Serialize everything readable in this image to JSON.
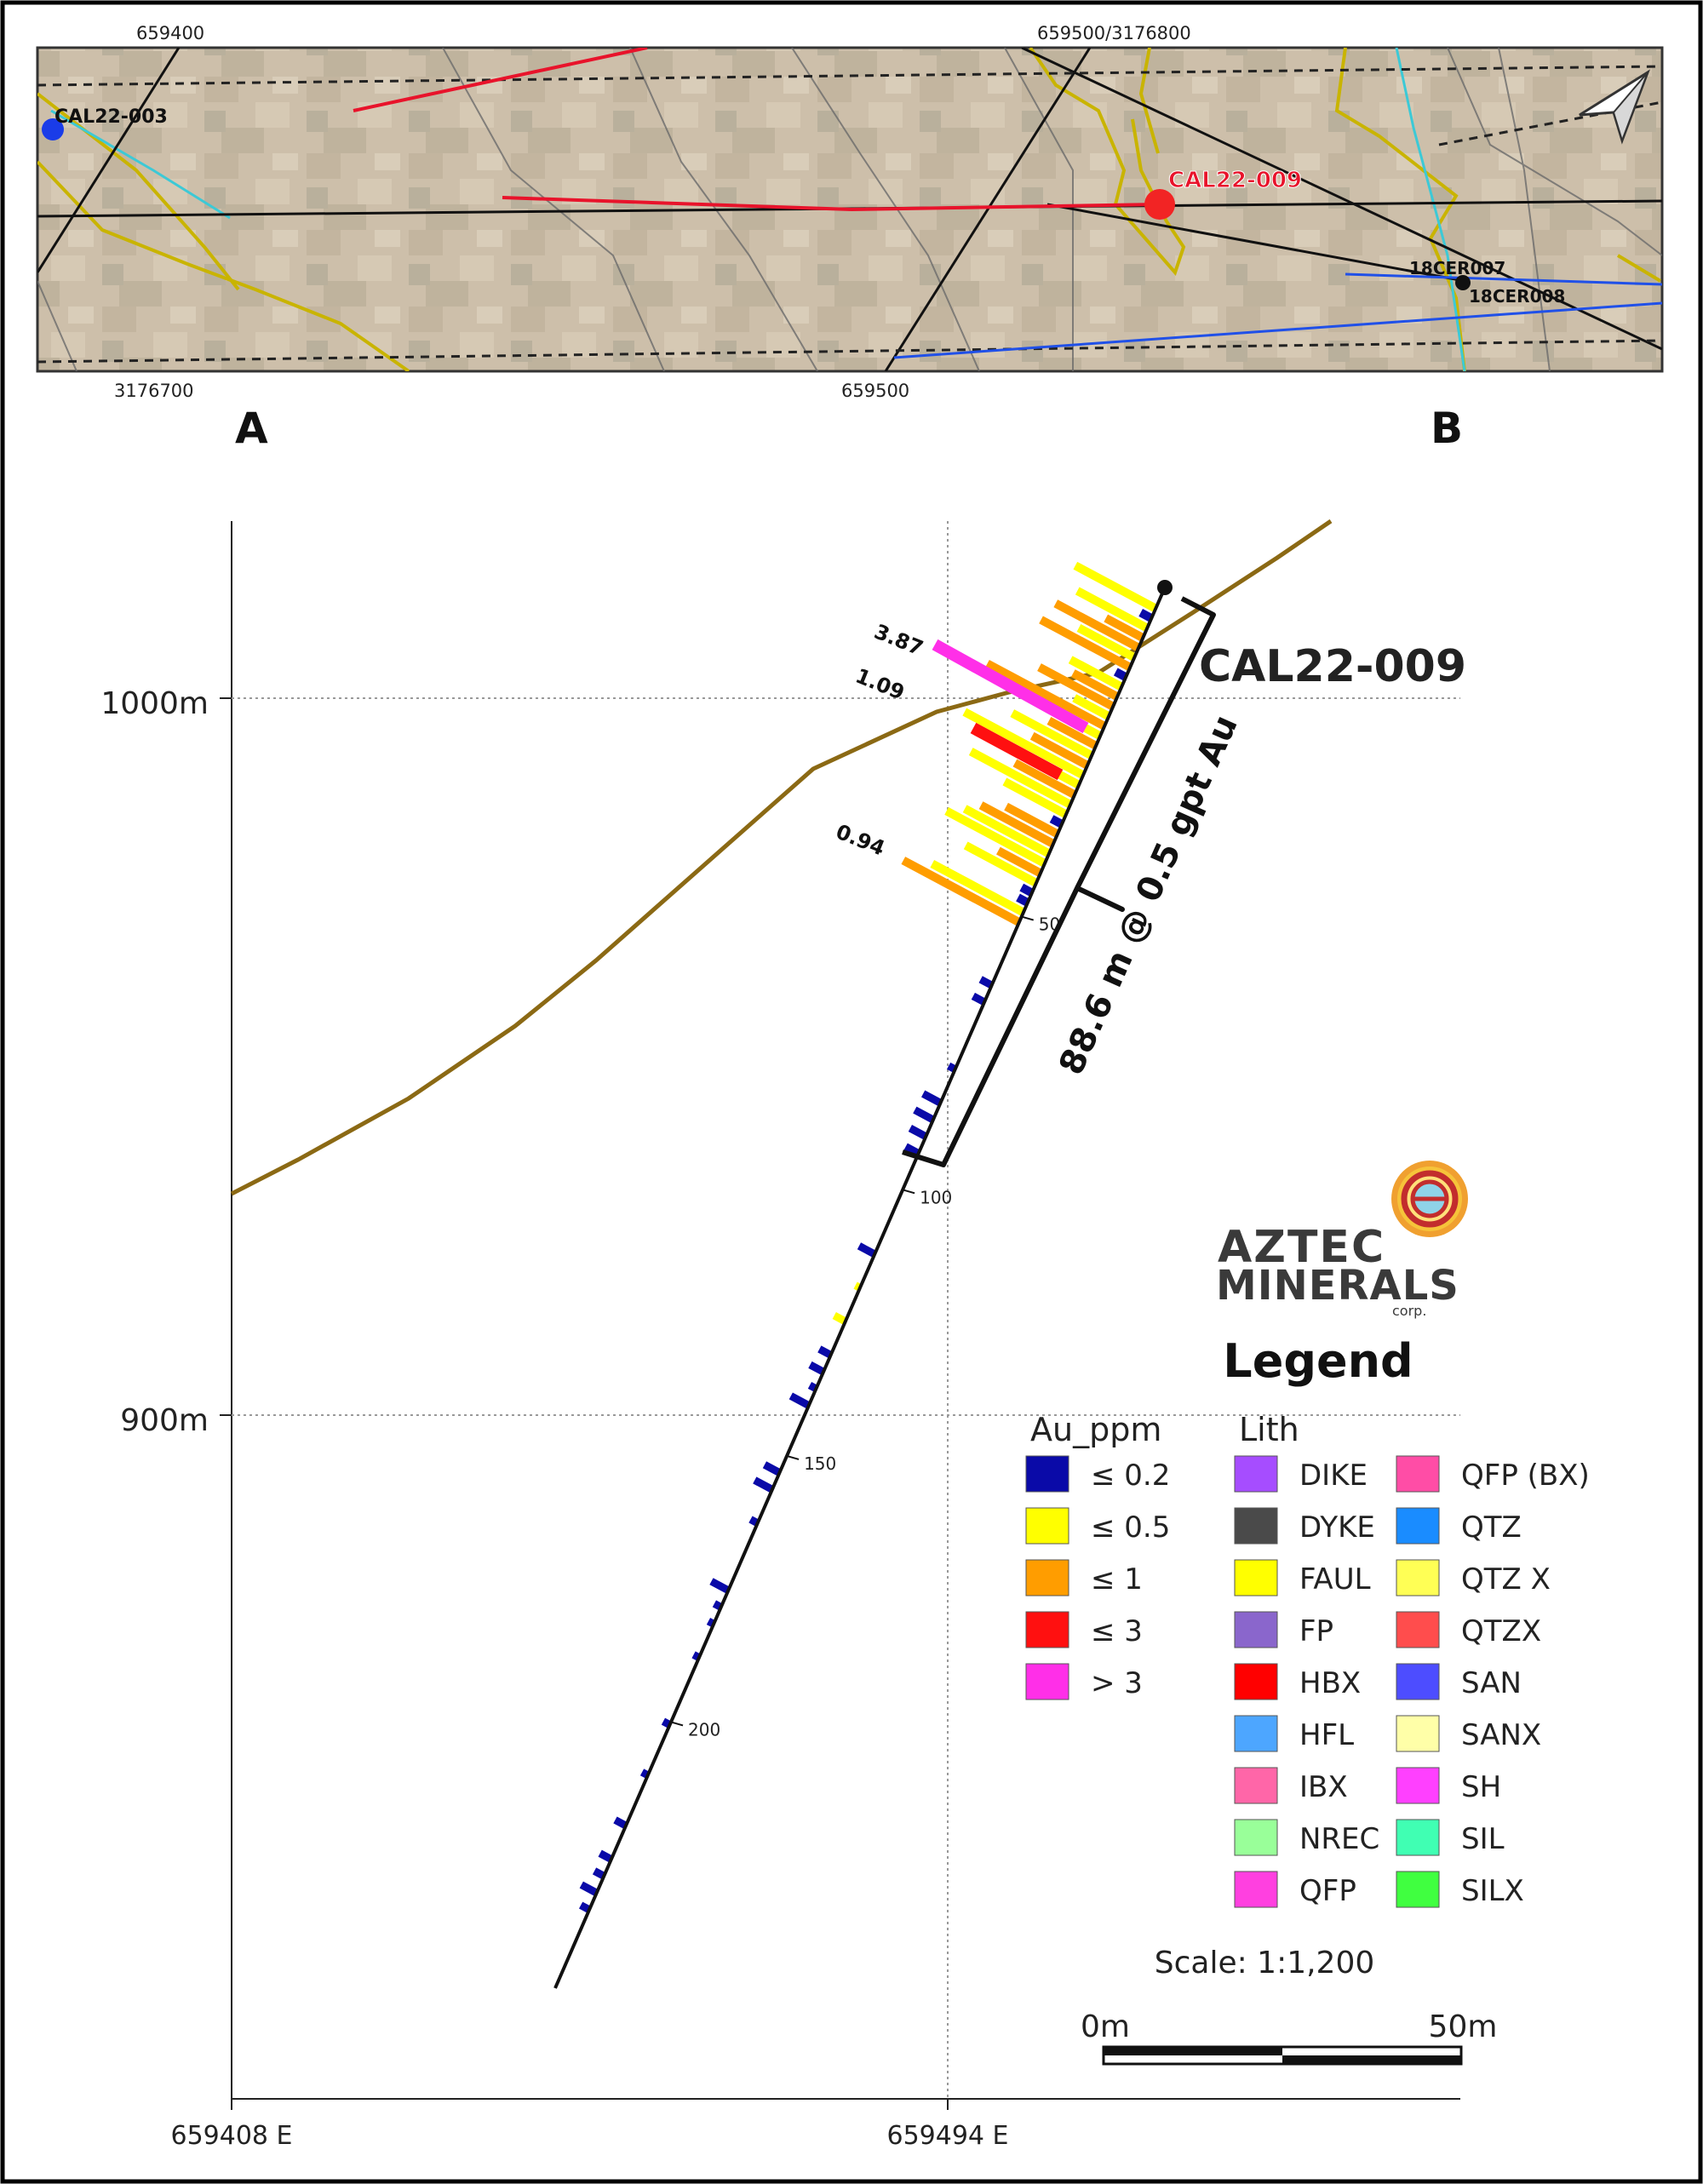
{
  "plan_map": {
    "grid_labels": {
      "top_left": "659400",
      "top_mid": "659500/3176800",
      "bottom_left": "3176700",
      "bottom_mid": "659500"
    },
    "holes": {
      "cal22_003": "CAL22-003",
      "cal22_009": "CAL22-009",
      "cer007": "18CER007",
      "cer008": "18CER008"
    }
  },
  "section_endpoints": {
    "a": "A",
    "b": "B"
  },
  "section": {
    "elevations": {
      "e1000": "1000m",
      "e900": "900m"
    },
    "eastings": {
      "e1": "659408 E",
      "e2": "659494 E"
    },
    "hole_id": "CAL22-009",
    "intercept": "88.6 m @ 0.5 gpt Au",
    "depth_ticks": [
      "50",
      "100",
      "150",
      "200"
    ],
    "assay_labels": [
      "3.87",
      "1.09",
      "0.94"
    ]
  },
  "logo": {
    "line1": "AZTEC",
    "line2": "MINERALS",
    "line3": "corp."
  },
  "legend": {
    "title": "Legend",
    "au_title": "Au_ppm",
    "au": [
      {
        "label": "≤ 0.2",
        "color": "#0a0aa8"
      },
      {
        "label": "≤ 0.5",
        "color": "#ffff00"
      },
      {
        "label": "≤ 1",
        "color": "#ff9d00"
      },
      {
        "label": "≤ 3",
        "color": "#ff1010"
      },
      {
        "label": "> 3",
        "color": "#ff2fe8"
      }
    ],
    "lith_title": "Lith",
    "lith_col1": [
      {
        "label": "DIKE",
        "color": "#a64dff"
      },
      {
        "label": "DYKE",
        "color": "#4a4a4a"
      },
      {
        "label": "FAUL",
        "color": "#ffff00"
      },
      {
        "label": "FP",
        "color": "#8a66cc"
      },
      {
        "label": "HBX",
        "color": "#ff0000"
      },
      {
        "label": "HFL",
        "color": "#4da6ff"
      },
      {
        "label": "IBX",
        "color": "#ff66a8"
      },
      {
        "label": "NREC",
        "color": "#99ff99"
      },
      {
        "label": "QFP",
        "color": "#ff40e0"
      }
    ],
    "lith_col2": [
      {
        "label": "QFP (BX)",
        "color": "#ff4da6"
      },
      {
        "label": "QTZ",
        "color": "#1a8cff"
      },
      {
        "label": "QTZ X",
        "color": "#ffff55"
      },
      {
        "label": "QTZX",
        "color": "#ff4d4d"
      },
      {
        "label": "SAN",
        "color": "#4d4dff"
      },
      {
        "label": "SANX",
        "color": "#ffffa8"
      },
      {
        "label": "SH",
        "color": "#ff40ff"
      },
      {
        "label": "SIL",
        "color": "#40ffb3"
      },
      {
        "label": "SILX",
        "color": "#40ff40"
      }
    ]
  },
  "scale": {
    "ratio": "Scale: 1:1,200",
    "zero": "0m",
    "max": "50m"
  }
}
